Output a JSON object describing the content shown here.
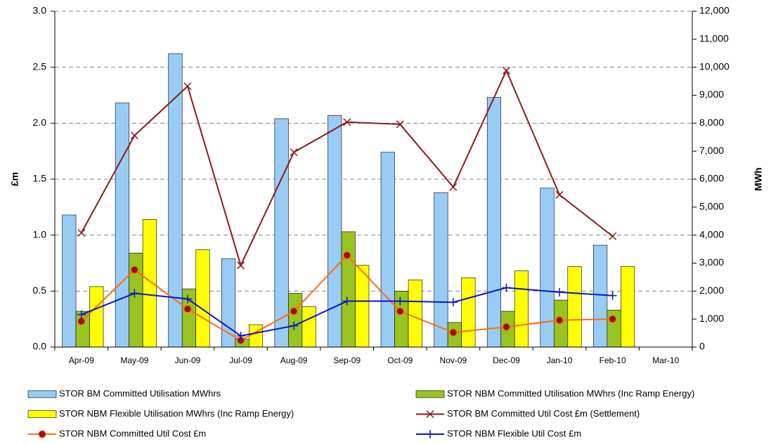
{
  "chart_data": {
    "type": "bar_line_combo",
    "y_label": "£m",
    "y2_label": "MWh",
    "categories": [
      "Apr-09",
      "May-09",
      "Jun-09",
      "Jul-09",
      "Aug-09",
      "Sep-09",
      "Oct-09",
      "Nov-09",
      "Dec-09",
      "Jan-10",
      "Feb-10",
      "Mar-10"
    ],
    "ylim": [
      0,
      3
    ],
    "yticks": [
      {
        "value": 0,
        "label": "0.0"
      },
      0.5,
      {
        "value": 1,
        "label": "1.0"
      },
      1.5,
      {
        "value": 2,
        "label": "2.0"
      },
      2.5,
      {
        "value": 3,
        "label": "3.0"
      }
    ],
    "y2lim": [
      0,
      12000
    ],
    "y2ticks": [
      0,
      {
        "value": 1000,
        "label": "1,000"
      },
      {
        "value": 2000,
        "label": "2,000"
      },
      {
        "value": 3000,
        "label": "3,000"
      },
      {
        "value": 4000,
        "label": "4,000"
      },
      {
        "value": 5000,
        "label": "5,000"
      },
      {
        "value": 6000,
        "label": "6,000"
      },
      {
        "value": 7000,
        "label": "7,000"
      },
      {
        "value": 8000,
        "label": "8,000"
      },
      {
        "value": 9000,
        "label": "9,000"
      },
      {
        "value": 10000,
        "label": "10,000"
      },
      {
        "value": 11000,
        "label": "11,000"
      },
      {
        "value": 12000,
        "label": "12,000"
      }
    ],
    "grid": true,
    "series": [
      {
        "name": "STOR BM  Committed Utilisation MWhrs",
        "kind": "bar",
        "axis": "y2",
        "color": "#99ccf5",
        "values": [
          4720,
          8720,
          10480,
          3160,
          8160,
          8280,
          6960,
          5520,
          8920,
          5680,
          3640,
          null
        ]
      },
      {
        "name": "STOR NBM Committed Utilisation MWhrs (Inc Ramp Energy)",
        "kind": "bar",
        "axis": "y2",
        "color": "#99c31f",
        "values": [
          1280,
          3360,
          2080,
          280,
          1920,
          4120,
          2000,
          880,
          1280,
          1680,
          1320,
          null
        ]
      },
      {
        "name": "STOR NBM Flexible Utilisation MWhrs (Inc Ramp Energy)",
        "kind": "bar",
        "axis": "y2",
        "color": "#ffff00",
        "values": [
          2160,
          4560,
          3480,
          800,
          1440,
          2920,
          2400,
          2480,
          2720,
          2880,
          2880,
          null
        ]
      },
      {
        "name": "STOR BM  Committed Util Cost £m (Settlement)",
        "kind": "line",
        "color": "#8b1a1a",
        "marker": "x",
        "values": [
          1.02,
          1.89,
          2.33,
          0.73,
          1.74,
          2.01,
          1.99,
          1.43,
          2.47,
          1.36,
          0.99,
          null
        ]
      },
      {
        "name": "STOR NBM Committed Util Cost £m",
        "kind": "line",
        "color": "#ff6a13",
        "marker": "circle",
        "marker_color": "#9b1010",
        "values": [
          0.23,
          0.69,
          0.34,
          0.06,
          0.32,
          0.82,
          0.32,
          0.13,
          0.18,
          0.24,
          0.25,
          null
        ]
      },
      {
        "name": "STOR NBM Flexible Util Cost £m",
        "kind": "line",
        "color": "#0a14c8",
        "marker": "plus",
        "values": [
          0.29,
          0.48,
          0.43,
          0.1,
          0.19,
          0.41,
          0.41,
          0.4,
          0.53,
          0.49,
          0.46,
          null
        ]
      }
    ]
  }
}
